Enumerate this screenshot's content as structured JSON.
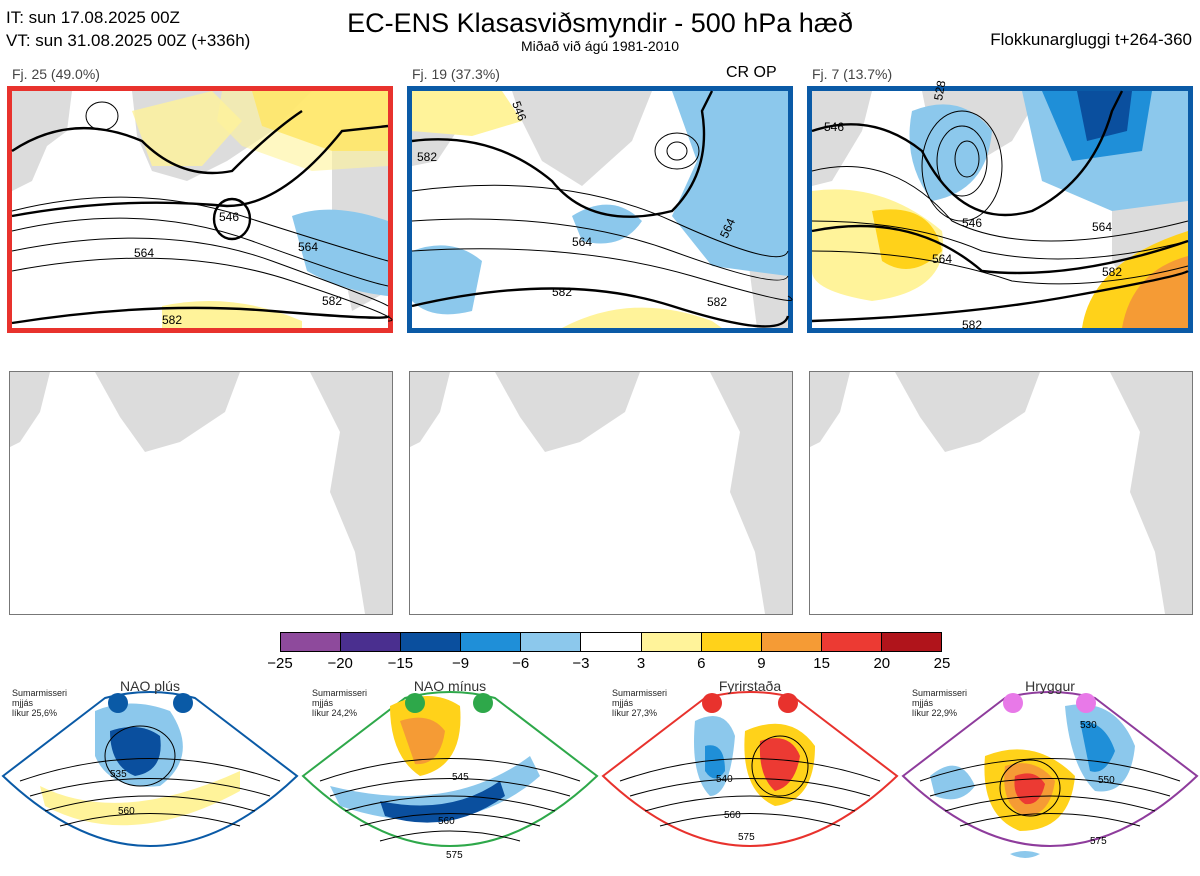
{
  "header": {
    "init_time": "IT: sun 17.08.2025 00Z",
    "valid_time": "VT: sun 31.08.2025 00Z  (+336h)",
    "title": "EC-ENS Klasasviðsmyndir - 500 hPa hæð",
    "subtitle": "Miðað við ágú 1981-2010",
    "window": "Flokkunargluggi t+264-360"
  },
  "clusters": [
    {
      "label": "Fj. 25 (49.0%)",
      "border_color": "#e8322d",
      "tag": "",
      "contours": [
        "546",
        "564",
        "582",
        "564",
        "582"
      ]
    },
    {
      "label": "Fj. 19 (37.3%)",
      "border_color": "#0a5aa6",
      "tag": "CR OP",
      "contours": [
        "546",
        "582",
        "564",
        "564",
        "582",
        "582"
      ]
    },
    {
      "label": "Fj. 7 (13.7%)",
      "border_color": "#0a5aa6",
      "tag": "",
      "contours": [
        "528",
        "546",
        "546",
        "564",
        "564",
        "582",
        "582"
      ]
    }
  ],
  "colorbar": {
    "colors": [
      "#8e4a9c",
      "#4a2f8f",
      "#0a4f9e",
      "#1f8fd8",
      "#8cc8ec",
      "#ffffff",
      "#fff39a",
      "#ffd21a",
      "#f59b35",
      "#ec3a33",
      "#b0141b"
    ],
    "ticks": [
      "−25",
      "−20",
      "−15",
      "−9",
      "−6",
      "−3",
      "3",
      "6",
      "9",
      "15",
      "20",
      "25"
    ]
  },
  "regimes": [
    {
      "name": "NAO plús",
      "note": [
        "Sumarmisseri",
        "mjjás",
        "líkur 25,6%"
      ],
      "color": "#0a5aa6",
      "dot_color": "#0a5aa6",
      "contours": [
        "535",
        "560"
      ]
    },
    {
      "name": "NAO mínus",
      "note": [
        "Sumarmisseri",
        "mjjás",
        "líkur 24,2%"
      ],
      "color": "#2ea84a",
      "dot_color": "#2ea84a",
      "contours": [
        "545",
        "560",
        "575"
      ]
    },
    {
      "name": "Fyrirstaða",
      "note": [
        "Sumarmisseri",
        "mjjás",
        "líkur 27,3%"
      ],
      "color": "#e8322d",
      "dot_color": "#e8322d",
      "contours": [
        "540",
        "560",
        "575"
      ]
    },
    {
      "name": "Hryggur",
      "note": [
        "Sumarmisseri",
        "mjjás",
        "líkur 22,9%"
      ],
      "color": "#8e3c9c",
      "dot_color": "#e879e8",
      "contours": [
        "530",
        "550",
        "575"
      ]
    }
  ]
}
